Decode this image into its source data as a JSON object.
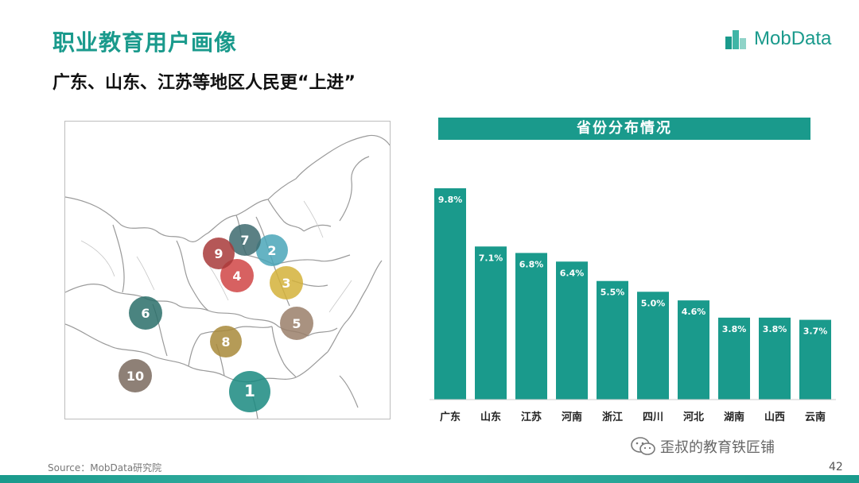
{
  "page": {
    "title": "职业教育用户画像",
    "subtitle": "广东、山东、江苏等地区人民更“上进”",
    "logo_text": "MobData",
    "source": "Source：MobData研究院",
    "watermark": "歪叔的教育铁匠铺",
    "page_number": "42",
    "accent_color": "#1a9a8c"
  },
  "map": {
    "markers": [
      {
        "label": "1",
        "color": "#1a8a80"
      },
      {
        "label": "2",
        "color": "#4aa6b8"
      },
      {
        "label": "3",
        "color": "#d4b23a"
      },
      {
        "label": "4",
        "color": "#d04545"
      },
      {
        "label": "5",
        "color": "#9a7f6a"
      },
      {
        "label": "6",
        "color": "#2a6f6a"
      },
      {
        "label": "7",
        "color": "#3d6a6e"
      },
      {
        "label": "8",
        "color": "#a88a3a"
      },
      {
        "label": "9",
        "color": "#a83a3a"
      },
      {
        "label": "10",
        "color": "#7a6a5e"
      }
    ]
  },
  "chart_data": {
    "type": "bar",
    "title": "省份分布情况",
    "categories": [
      "广东",
      "山东",
      "江苏",
      "河南",
      "浙江",
      "四川",
      "河北",
      "湖南",
      "山西",
      "云南"
    ],
    "values": [
      9.8,
      7.1,
      6.8,
      6.4,
      5.5,
      5.0,
      4.6,
      3.8,
      3.8,
      3.7
    ],
    "value_labels": [
      "9.8%",
      "7.1%",
      "6.8%",
      "6.4%",
      "5.5%",
      "5.0%",
      "4.6%",
      "3.8%",
      "3.8%",
      "3.7%"
    ],
    "unit": "%",
    "ylim": [
      0,
      10
    ],
    "bar_color": "#1a9a8c",
    "grid": false
  }
}
